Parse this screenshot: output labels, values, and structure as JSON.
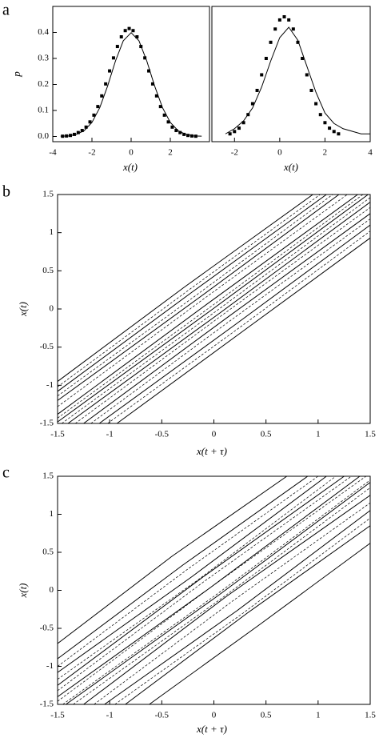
{
  "chart_data": [
    {
      "type": "line",
      "panel_label": "a",
      "ylabel": "p",
      "xlabel": "x(t)",
      "xlim": [
        -4,
        4
      ],
      "ylim": [
        -0.02,
        0.5
      ],
      "xticks": [
        -4,
        -2,
        0,
        2
      ],
      "yticks": [
        {
          "value": 0,
          "label": "0.0"
        },
        0.1,
        0.2,
        0.3,
        0.4
      ],
      "series": [
        {
          "marker": "square",
          "color": "#000000",
          "x": [
            -3.5,
            -3.3,
            -3.1,
            -2.9,
            -2.7,
            -2.5,
            -2.3,
            -2.1,
            -1.9,
            -1.7,
            -1.5,
            -1.3,
            -1.1,
            -0.9,
            -0.7,
            -0.5,
            -0.3,
            -0.1,
            0.1,
            0.3,
            0.5,
            0.7,
            0.9,
            1.1,
            1.3,
            1.5,
            1.7,
            1.9,
            2.1,
            2.3,
            2.5,
            2.7,
            2.9,
            3.1,
            3.3
          ],
          "values": [
            0.001,
            0.002,
            0.004,
            0.008,
            0.015,
            0.023,
            0.036,
            0.056,
            0.082,
            0.115,
            0.156,
            0.202,
            0.252,
            0.302,
            0.346,
            0.383,
            0.407,
            0.415,
            0.407,
            0.383,
            0.346,
            0.302,
            0.252,
            0.202,
            0.156,
            0.115,
            0.082,
            0.056,
            0.036,
            0.023,
            0.015,
            0.008,
            0.004,
            0.002,
            0.001
          ]
        },
        {
          "marker": "none",
          "color": "#000000",
          "x": [
            -3.6,
            -3.2,
            -2.8,
            -2.4,
            -2,
            -1.6,
            -1.2,
            -0.8,
            -0.4,
            0,
            0.4,
            0.8,
            1.2,
            1.6,
            2,
            2.4,
            2.8,
            3.2,
            3.6
          ],
          "values": [
            0.001,
            0.002,
            0.008,
            0.022,
            0.054,
            0.111,
            0.194,
            0.29,
            0.368,
            0.399,
            0.368,
            0.29,
            0.194,
            0.111,
            0.054,
            0.022,
            0.008,
            0.002,
            0.001
          ]
        }
      ]
    },
    {
      "type": "line",
      "xlabel": "x(t)",
      "xlim": [
        -3,
        4
      ],
      "ylim": [
        -0.02,
        0.5
      ],
      "xticks": [
        -2,
        0,
        2,
        4
      ],
      "series": [
        {
          "marker": "square",
          "color": "#000000",
          "x": [
            -2.2,
            -2.0,
            -1.8,
            -1.6,
            -1.4,
            -1.2,
            -1.0,
            -0.8,
            -0.6,
            -0.4,
            -0.2,
            0,
            0.2,
            0.4,
            0.6,
            0.8,
            1.0,
            1.2,
            1.4,
            1.6,
            1.8,
            2.0,
            2.2,
            2.4,
            2.6
          ],
          "values": [
            0.01,
            0.019,
            0.032,
            0.053,
            0.084,
            0.126,
            0.177,
            0.237,
            0.3,
            0.362,
            0.413,
            0.448,
            0.46,
            0.448,
            0.413,
            0.362,
            0.3,
            0.237,
            0.177,
            0.126,
            0.084,
            0.053,
            0.032,
            0.019,
            0.01
          ]
        },
        {
          "marker": "none",
          "color": "#000000",
          "x": [
            -2.4,
            -2.0,
            -1.6,
            -1.2,
            -0.8,
            -0.4,
            0,
            0.4,
            0.8,
            1.2,
            1.6,
            2.0,
            2.4,
            2.8,
            3.2,
            3.6,
            4.0
          ],
          "values": [
            0.01,
            0.03,
            0.06,
            0.11,
            0.19,
            0.29,
            0.38,
            0.42,
            0.37,
            0.27,
            0.17,
            0.09,
            0.05,
            0.03,
            0.02,
            0.01,
            0.01
          ]
        }
      ]
    },
    {
      "type": "contour",
      "panel_label": "b",
      "xlabel": "x(t + τ)",
      "ylabel": "x(t)",
      "xlim": [
        -1.5,
        1.5
      ],
      "ylim": [
        -1.5,
        1.5
      ],
      "xticks": [
        -1.5,
        -1,
        -0.5,
        0,
        0.5,
        1,
        1.5
      ],
      "yticks": [
        -1.5,
        -1,
        -0.5,
        0,
        0.5,
        1,
        1.5
      ],
      "contours": [
        {
          "style": "solid",
          "x": [
            -1.5,
            -0.28,
            0.95
          ],
          "y": [
            -0.95,
            0.29,
            1.5
          ]
        },
        {
          "style": "solid",
          "x": [
            -1.5,
            -0.21,
            1.08
          ],
          "y": [
            -1.08,
            0.22,
            1.5
          ]
        },
        {
          "style": "solid",
          "x": [
            -1.5,
            -0.15,
            1.2
          ],
          "y": [
            -1.2,
            0.14,
            1.5
          ]
        },
        {
          "style": "solid",
          "x": [
            -1.5,
            -0.06,
            1.38
          ],
          "y": [
            -1.38,
            0.07,
            1.5
          ]
        },
        {
          "style": "solid",
          "x": [
            -1.5,
            -0.01,
            1.48
          ],
          "y": [
            -1.48,
            0.0,
            1.5
          ]
        },
        {
          "style": "solid",
          "x": [
            -1.4,
            0.05,
            1.5
          ],
          "y": [
            -1.5,
            -0.06,
            1.4
          ]
        },
        {
          "style": "solid",
          "x": [
            -1.25,
            0.12,
            1.5
          ],
          "y": [
            -1.5,
            -0.12,
            1.25
          ]
        },
        {
          "style": "solid",
          "x": [
            -1.1,
            0.2,
            1.5
          ],
          "y": [
            -1.5,
            -0.21,
            1.1
          ]
        },
        {
          "style": "solid",
          "x": [
            -0.93,
            0.28,
            1.5
          ],
          "y": [
            -1.5,
            -0.29,
            0.93
          ]
        },
        {
          "style": "dashed",
          "x": [
            -1.5,
            -0.24,
            1.02
          ],
          "y": [
            -1.02,
            0.25,
            1.5
          ]
        },
        {
          "style": "dashed",
          "x": [
            -1.5,
            -0.18,
            1.14
          ],
          "y": [
            -1.14,
            0.17,
            1.5
          ]
        },
        {
          "style": "dashed",
          "x": [
            -1.5,
            -0.11,
            1.28
          ],
          "y": [
            -1.28,
            0.12,
            1.5
          ]
        },
        {
          "style": "dashed",
          "x": [
            -1.5,
            -0.03,
            1.43
          ],
          "y": [
            -1.43,
            0.03,
            1.5
          ]
        },
        {
          "style": "dashed",
          "x": [
            -1.46,
            0.02,
            1.5
          ],
          "y": [
            -1.5,
            -0.03,
            1.46
          ]
        },
        {
          "style": "dashed",
          "x": [
            -1.33,
            0.08,
            1.5
          ],
          "y": [
            -1.5,
            -0.08,
            1.33
          ]
        },
        {
          "style": "dashed",
          "x": [
            -1.18,
            0.16,
            1.5
          ],
          "y": [
            -1.5,
            -0.15,
            1.18
          ]
        },
        {
          "style": "dashed",
          "x": [
            -1.02,
            0.24,
            1.5
          ],
          "y": [
            -1.5,
            -0.25,
            1.02
          ]
        }
      ]
    },
    {
      "type": "contour",
      "panel_label": "c",
      "xlabel": "x(t + τ)",
      "ylabel": "x(t)",
      "xlim": [
        -1.5,
        1.5
      ],
      "ylim": [
        -1.5,
        1.5
      ],
      "xticks": [
        -1.5,
        -1,
        -0.5,
        0,
        0.5,
        1,
        1.5
      ],
      "yticks": [
        -1.5,
        -1,
        -0.5,
        0,
        0.5,
        1,
        1.5
      ],
      "contours": [
        {
          "style": "solid",
          "x": [
            -1.5,
            -0.4,
            0.7
          ],
          "y": [
            -0.7,
            0.45,
            1.5
          ]
        },
        {
          "style": "solid",
          "x": [
            -1.5,
            -0.3,
            0.9
          ],
          "y": [
            -0.9,
            0.33,
            1.5
          ]
        },
        {
          "style": "solid",
          "x": [
            -1.5,
            -0.21,
            1.08
          ],
          "y": [
            -1.08,
            0.18,
            1.5
          ]
        },
        {
          "style": "solid",
          "x": [
            -1.5,
            -0.12,
            1.25
          ],
          "y": [
            -1.25,
            0.16,
            1.5
          ]
        },
        {
          "style": "solid",
          "x": [
            -1.5,
            -0.05,
            1.4
          ],
          "y": [
            -1.4,
            0.02,
            1.5
          ]
        },
        {
          "style": "solid",
          "x": [
            -1.42,
            0.04,
            1.5
          ],
          "y": [
            -1.5,
            -0.07,
            1.42
          ]
        },
        {
          "style": "solid",
          "x": [
            -1.25,
            0.12,
            1.5
          ],
          "y": [
            -1.5,
            -0.08,
            1.25
          ]
        },
        {
          "style": "solid",
          "x": [
            -1.05,
            0.22,
            1.5
          ],
          "y": [
            -1.5,
            -0.27,
            1.05
          ]
        },
        {
          "style": "solid",
          "x": [
            -0.85,
            0.32,
            1.5
          ],
          "y": [
            -1.5,
            -0.3,
            0.85
          ]
        },
        {
          "style": "solid",
          "x": [
            -0.62,
            0.44,
            1.5
          ],
          "y": [
            -1.5,
            -0.45,
            0.62
          ]
        },
        {
          "style": "dashed",
          "x": [
            -1.5,
            -0.25,
            1.0
          ],
          "y": [
            -1.0,
            0.28,
            1.5
          ]
        },
        {
          "style": "dashed",
          "x": [
            -1.5,
            -0.16,
            1.17
          ],
          "y": [
            -1.17,
            0.13,
            1.5
          ]
        },
        {
          "style": "dashed",
          "x": [
            -1.5,
            -0.09,
            1.32
          ],
          "y": [
            -1.32,
            0.12,
            1.5
          ]
        },
        {
          "style": "dashed",
          "x": [
            -1.5,
            -0.02,
            1.46
          ],
          "y": [
            -1.46,
            0.05,
            1.5
          ]
        },
        {
          "style": "dashed",
          "x": [
            -1.45,
            0.02,
            1.5
          ],
          "y": [
            -1.5,
            -0.06,
            1.45
          ]
        },
        {
          "style": "dashed",
          "x": [
            -1.35,
            0.08,
            1.5
          ],
          "y": [
            -1.5,
            -0.1,
            1.35
          ]
        },
        {
          "style": "dashed",
          "x": [
            -1.15,
            0.18,
            1.5
          ],
          "y": [
            -1.5,
            -0.14,
            1.15
          ]
        },
        {
          "style": "dashed",
          "x": [
            -0.95,
            0.28,
            1.5
          ],
          "y": [
            -1.5,
            -0.3,
            0.95
          ]
        }
      ]
    }
  ]
}
